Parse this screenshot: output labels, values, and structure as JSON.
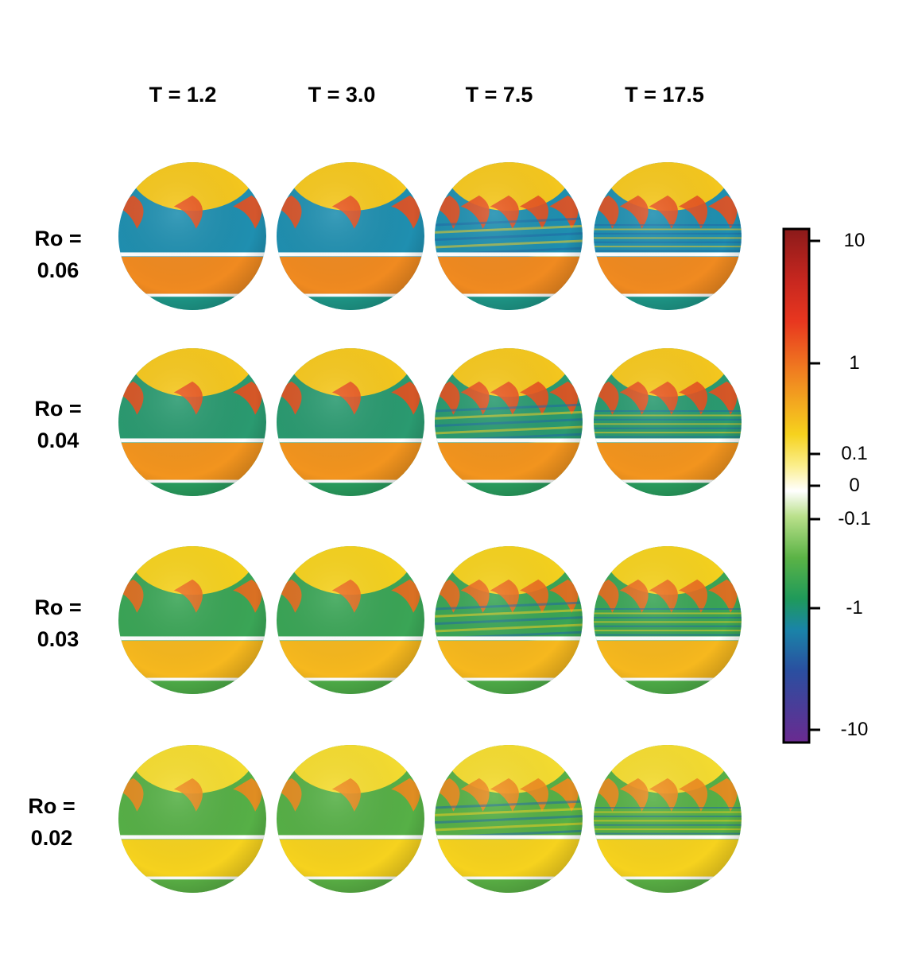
{
  "columns": [
    "T = 1.2",
    "T = 3.0",
    "T = 7.5",
    "T = 17.5"
  ],
  "rows": [
    {
      "label_line1": "Ro =",
      "label_line2": "0.06"
    },
    {
      "label_line1": "Ro =",
      "label_line2": "0.04"
    },
    {
      "label_line1": "Ro =",
      "label_line2": "0.03"
    },
    {
      "label_line1": "Ro =",
      "label_line2": "0.02"
    }
  ],
  "colorbar": {
    "tick_labels": [
      "10",
      "1",
      "0.1",
      "0",
      "-0.1",
      "-1",
      "-10"
    ],
    "colors": [
      "#8b1a1a",
      "#e8371f",
      "#f08020",
      "#f6d21e",
      "#ffffff",
      "#7cc242",
      "#1f9a5a",
      "#1a84a8",
      "#2a4fa0",
      "#6a2a90"
    ]
  }
}
